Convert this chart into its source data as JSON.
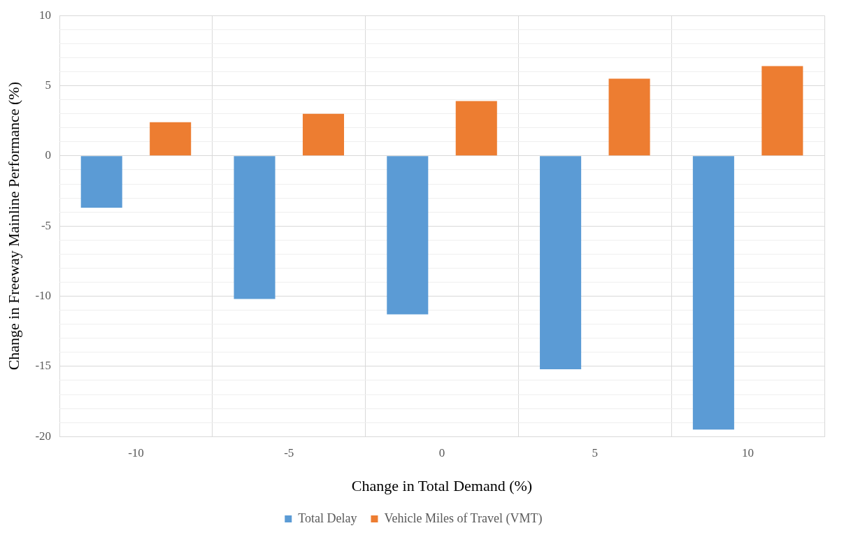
{
  "chart_data": {
    "type": "bar",
    "xlabel": "Change in Total Demand (%)",
    "ylabel": "Change in Freeway Mainline Performance (%)",
    "categories": [
      "-10",
      "-5",
      "0",
      "5",
      "10"
    ],
    "series": [
      {
        "name": "Total Delay",
        "color": "#5b9bd5",
        "values": [
          -3.7,
          -10.2,
          -11.3,
          -15.2,
          -19.5
        ]
      },
      {
        "name": "Vehicle Miles of Travel (VMT)",
        "color": "#ed7d31",
        "values": [
          2.4,
          3.0,
          3.9,
          5.5,
          6.4
        ]
      }
    ],
    "ylim": [
      -20,
      10
    ],
    "yticks": [
      -20,
      {
        "value": -19,
        "label": null
      },
      {
        "value": -18,
        "label": null
      },
      {
        "value": -17,
        "label": null
      },
      {
        "value": -16,
        "label": null
      },
      -15,
      {
        "value": -14,
        "label": null
      },
      {
        "value": -13,
        "label": null
      },
      {
        "value": -12,
        "label": null
      },
      {
        "value": -11,
        "label": null
      },
      -10,
      {
        "value": -9,
        "label": null
      },
      {
        "value": -8,
        "label": null
      },
      {
        "value": -7,
        "label": null
      },
      {
        "value": -6,
        "label": null
      },
      -5,
      {
        "value": -4,
        "label": null
      },
      {
        "value": -3,
        "label": null
      },
      {
        "value": -2,
        "label": null
      },
      {
        "value": -1,
        "label": null
      },
      0,
      {
        "value": 1,
        "label": null
      },
      {
        "value": 2,
        "label": null
      },
      {
        "value": 3,
        "label": null
      },
      {
        "value": 4,
        "label": null
      },
      5,
      {
        "value": 6,
        "label": null
      },
      {
        "value": 7,
        "label": null
      },
      {
        "value": 8,
        "label": null
      },
      {
        "value": 9,
        "label": null
      },
      10
    ],
    "grid": true,
    "legend": "bottom"
  }
}
